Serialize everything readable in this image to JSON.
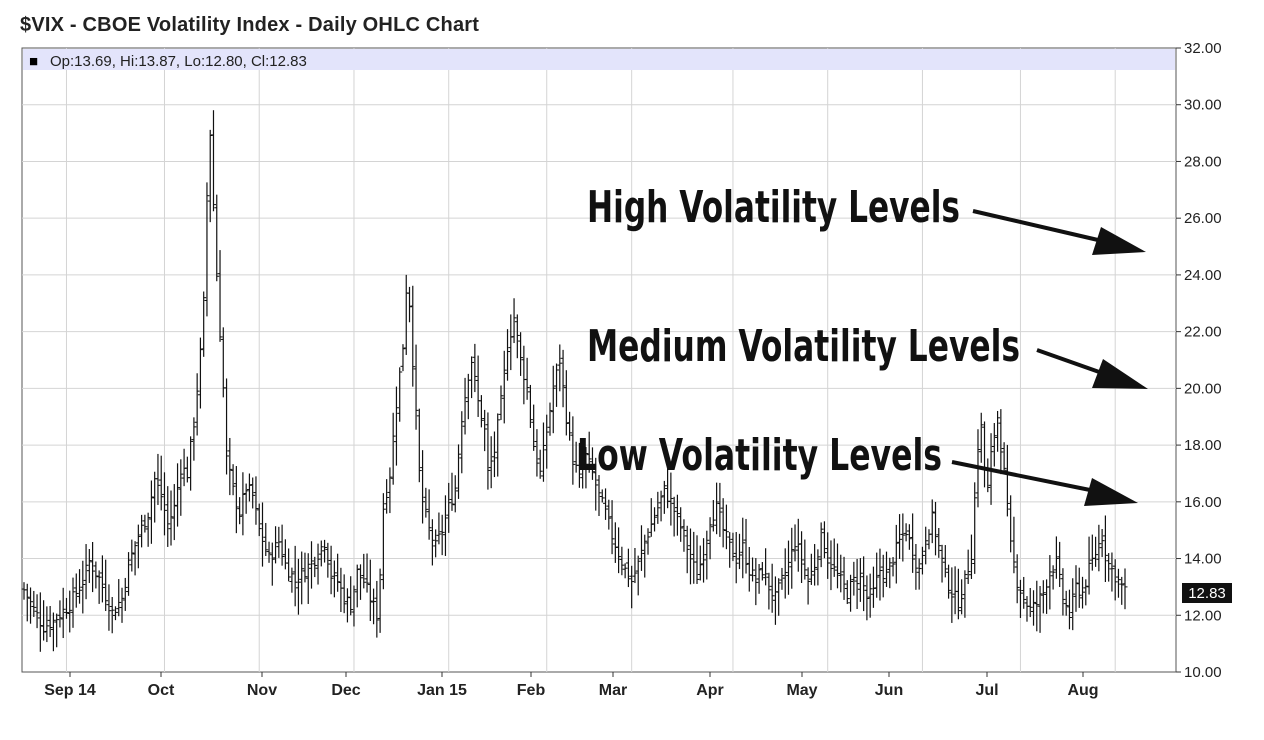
{
  "chart_data": {
    "type": "ohlc",
    "title": "$VIX - CBOE Volatility Index - Daily OHLC Chart",
    "legend_box": {
      "marker": "■",
      "text": "Op:13.69, Hi:13.87, Lo:12.80, Cl:12.83",
      "background": "#e3e4fb"
    },
    "y_axis": {
      "position": "right",
      "range": [
        10,
        32
      ],
      "ticks": [
        "10.00",
        "12.00",
        "14.00",
        "16.00",
        "18.00",
        "20.00",
        "22.00",
        "24.00",
        "26.00",
        "28.00",
        "30.00",
        "32.00"
      ],
      "tick_values": [
        10,
        12,
        14,
        16,
        18,
        20,
        22,
        24,
        26,
        28,
        30,
        32
      ]
    },
    "x_axis": {
      "labels": [
        "Sep 14",
        "Oct",
        "Nov",
        "Dec",
        "Jan 15",
        "Feb",
        "Mar",
        "Apr",
        "May",
        "Jun",
        "Jul",
        "Aug"
      ],
      "gridlines": true
    },
    "last_value_label": "12.83",
    "last_value": 12.83,
    "bar_color": "#111111",
    "grid_color": "#d4d4d4",
    "anchors": [
      [
        0,
        12.9
      ],
      [
        3,
        12.2
      ],
      [
        6,
        11.6
      ],
      [
        9,
        11.8
      ],
      [
        14,
        12.4
      ],
      [
        18,
        13.2
      ],
      [
        20,
        13.9
      ],
      [
        23,
        13.3
      ],
      [
        27,
        12.1
      ],
      [
        30,
        12.6
      ],
      [
        32,
        13.8
      ],
      [
        35,
        14.8
      ],
      [
        38,
        15.6
      ],
      [
        40,
        16.8
      ],
      [
        42,
        16.2
      ],
      [
        44,
        15.2
      ],
      [
        46,
        15.8
      ],
      [
        48,
        17.2
      ],
      [
        50,
        17.0
      ],
      [
        52,
        18.8
      ],
      [
        54,
        21.2
      ],
      [
        55,
        23.0
      ],
      [
        56,
        26.8
      ],
      [
        57,
        29.0
      ],
      [
        58,
        26.5
      ],
      [
        59,
        24.0
      ],
      [
        60,
        22.0
      ],
      [
        61,
        20.0
      ],
      [
        62,
        17.5
      ],
      [
        64,
        16.4
      ],
      [
        66,
        15.6
      ],
      [
        68,
        16.5
      ],
      [
        70,
        16.2
      ],
      [
        72,
        15.0
      ],
      [
        75,
        14.0
      ],
      [
        78,
        14.6
      ],
      [
        80,
        13.8
      ],
      [
        83,
        13.2
      ],
      [
        86,
        13.6
      ],
      [
        89,
        14.0
      ],
      [
        92,
        14.6
      ],
      [
        94,
        13.4
      ],
      [
        96,
        13.2
      ],
      [
        98,
        12.6
      ],
      [
        100,
        12.4
      ],
      [
        102,
        13.5
      ],
      [
        104,
        13.2
      ],
      [
        106,
        12.6
      ],
      [
        108,
        12.0
      ],
      [
        109,
        13.5
      ],
      [
        110,
        15.8
      ],
      [
        112,
        17.0
      ],
      [
        114,
        19.5
      ],
      [
        116,
        21.5
      ],
      [
        117,
        23.5
      ],
      [
        118,
        23.0
      ],
      [
        119,
        21.0
      ],
      [
        120,
        19.0
      ],
      [
        121,
        17.0
      ],
      [
        122,
        16.0
      ],
      [
        124,
        15.0
      ],
      [
        126,
        14.4
      ],
      [
        128,
        15.0
      ],
      [
        130,
        15.8
      ],
      [
        132,
        16.5
      ],
      [
        134,
        19.0
      ],
      [
        136,
        20.5
      ],
      [
        137,
        21.0
      ],
      [
        139,
        19.5
      ],
      [
        141,
        18.5
      ],
      [
        142,
        17.0
      ],
      [
        144,
        17.8
      ],
      [
        146,
        19.5
      ],
      [
        148,
        21.5
      ],
      [
        150,
        22.5
      ],
      [
        152,
        21.0
      ],
      [
        154,
        20.0
      ],
      [
        156,
        18.0
      ],
      [
        158,
        17.0
      ],
      [
        160,
        18.5
      ],
      [
        162,
        20.0
      ],
      [
        164,
        21.0
      ],
      [
        166,
        19.0
      ],
      [
        168,
        17.5
      ],
      [
        170,
        16.8
      ],
      [
        172,
        17.6
      ],
      [
        174,
        17.0
      ],
      [
        176,
        16.2
      ],
      [
        178,
        15.6
      ],
      [
        180,
        14.8
      ],
      [
        182,
        14.2
      ],
      [
        184,
        13.6
      ],
      [
        186,
        13.2
      ],
      [
        188,
        13.8
      ],
      [
        190,
        14.6
      ],
      [
        192,
        15.2
      ],
      [
        194,
        15.8
      ],
      [
        196,
        16.4
      ],
      [
        198,
        16.0
      ],
      [
        200,
        15.4
      ],
      [
        202,
        14.8
      ],
      [
        204,
        14.0
      ],
      [
        206,
        13.4
      ],
      [
        208,
        14.2
      ],
      [
        210,
        15.4
      ],
      [
        212,
        15.8
      ],
      [
        214,
        15.0
      ],
      [
        216,
        14.4
      ],
      [
        218,
        14.0
      ],
      [
        220,
        14.4
      ],
      [
        222,
        13.6
      ],
      [
        224,
        13.2
      ],
      [
        226,
        13.6
      ],
      [
        228,
        13.0
      ],
      [
        230,
        12.6
      ],
      [
        232,
        13.2
      ],
      [
        234,
        13.8
      ],
      [
        236,
        14.6
      ],
      [
        238,
        14.0
      ],
      [
        240,
        13.2
      ],
      [
        242,
        13.8
      ],
      [
        244,
        14.8
      ],
      [
        246,
        14.0
      ],
      [
        248,
        13.6
      ],
      [
        250,
        13.2
      ],
      [
        252,
        12.8
      ],
      [
        254,
        13.2
      ],
      [
        256,
        13.4
      ],
      [
        258,
        12.6
      ],
      [
        260,
        12.8
      ],
      [
        262,
        13.6
      ],
      [
        264,
        13.4
      ],
      [
        266,
        14.0
      ],
      [
        268,
        14.6
      ],
      [
        270,
        15.0
      ],
      [
        272,
        14.2
      ],
      [
        274,
        13.6
      ],
      [
        276,
        14.8
      ],
      [
        278,
        15.4
      ],
      [
        280,
        14.4
      ],
      [
        282,
        13.4
      ],
      [
        284,
        12.8
      ],
      [
        286,
        12.4
      ],
      [
        288,
        13.2
      ],
      [
        290,
        14.2
      ],
      [
        292,
        18.0
      ],
      [
        293,
        18.6
      ],
      [
        294,
        17.2
      ],
      [
        295,
        16.4
      ],
      [
        296,
        17.6
      ],
      [
        297,
        18.4
      ],
      [
        298,
        19.0
      ],
      [
        299,
        18.0
      ],
      [
        300,
        17.0
      ],
      [
        302,
        14.4
      ],
      [
        304,
        13.2
      ],
      [
        306,
        12.6
      ],
      [
        308,
        12.2
      ],
      [
        310,
        12.4
      ],
      [
        312,
        12.8
      ],
      [
        314,
        13.6
      ],
      [
        316,
        13.8
      ],
      [
        318,
        12.6
      ],
      [
        320,
        12.0
      ],
      [
        322,
        13.0
      ],
      [
        324,
        12.8
      ],
      [
        326,
        13.6
      ],
      [
        328,
        14.2
      ],
      [
        330,
        14.8
      ],
      [
        332,
        13.8
      ],
      [
        334,
        13.4
      ],
      [
        336,
        13.0
      ],
      [
        337,
        12.83
      ]
    ],
    "annotations": [
      {
        "text": "High Volatility Levels",
        "arrow_to": 25.0
      },
      {
        "text": "Medium Volatility Levels",
        "arrow_to": 20.0
      },
      {
        "text": "Low Volatility Levels",
        "arrow_to": 15.9
      }
    ]
  }
}
